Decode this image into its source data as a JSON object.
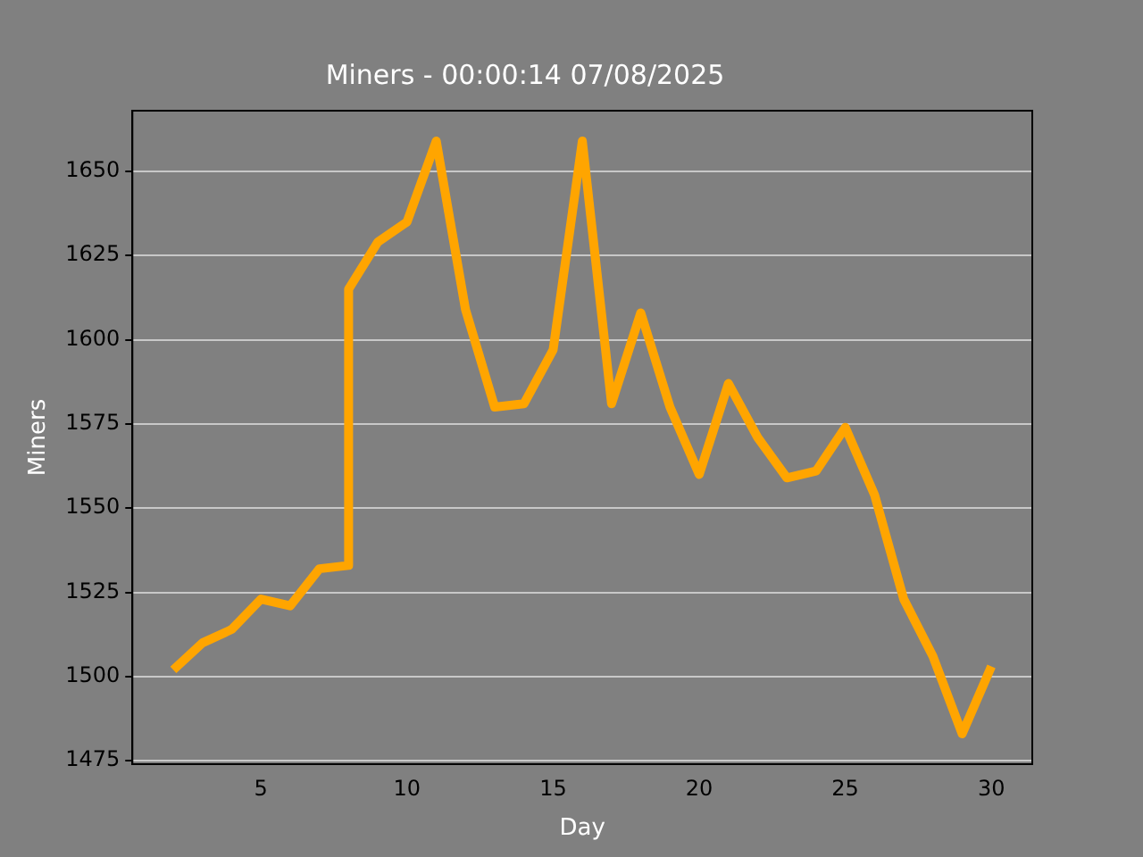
{
  "chart_data": {
    "type": "line",
    "title": "Miners - 00:00:14 07/08/2025",
    "xlabel": "Day",
    "ylabel": "Miners",
    "x": [
      2,
      3,
      4,
      5,
      6,
      7,
      8,
      8,
      9,
      10,
      11,
      12,
      13,
      14,
      15,
      16,
      17,
      18,
      19,
      20,
      21,
      22,
      23,
      24,
      25,
      26,
      27,
      28,
      29,
      30
    ],
    "series": [
      {
        "color": "#ffa500",
        "values": [
          1502,
          1510,
          1514,
          1523,
          1521,
          1532,
          1533,
          1615,
          1629,
          1635,
          1659,
          1609,
          1580,
          1581,
          1597,
          1659,
          1581,
          1608,
          1580,
          1560,
          1587,
          1571,
          1559,
          1561,
          1574,
          1554,
          1523,
          1506,
          1483,
          1503
        ]
      }
    ],
    "xlim": [
      0.6,
      31.4
    ],
    "xticks": [
      5,
      10,
      15,
      20,
      25,
      30
    ],
    "ylim": [
      1474,
      1668
    ],
    "yticks": [
      1475,
      1500,
      1525,
      1550,
      1575,
      1600,
      1625,
      1650
    ],
    "grid": "y",
    "legend": false,
    "marker": "none",
    "line_style": "solid"
  }
}
